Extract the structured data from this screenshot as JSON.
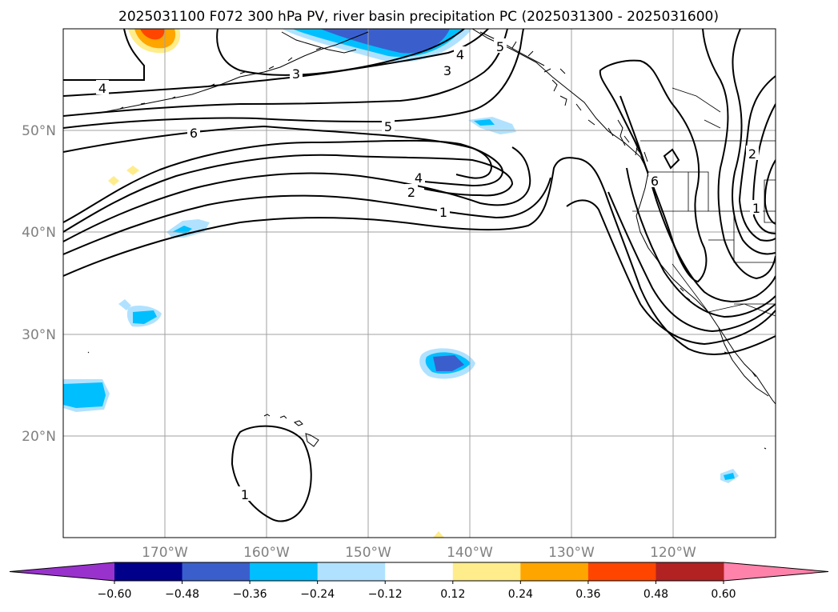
{
  "title": "2025031100 F072 300 hPa PV, river basin precipitation PC (2025031300 - 2025031600)",
  "map": {
    "lon_ticks": [
      "170°W",
      "160°W",
      "150°W",
      "140°W",
      "130°W",
      "120°W"
    ],
    "lat_ticks": [
      "50°N",
      "40°N",
      "30°N",
      "20°N"
    ],
    "extent": {
      "lon_min": -180,
      "lon_max": -110,
      "lat_min": 10,
      "lat_max": 60
    }
  },
  "colorbar": {
    "ticks": [
      "−0.60",
      "−0.48",
      "−0.36",
      "−0.24",
      "−0.12",
      "0.12",
      "0.24",
      "0.36",
      "0.48",
      "0.60"
    ],
    "colors": [
      "#9932cc",
      "#00008b",
      "#3a5fcd",
      "#00bfff",
      "#b0e2ff",
      "#ffffff",
      "#ffec8b",
      "#ffa500",
      "#ff4500",
      "#b22222",
      "#ff82ab"
    ]
  },
  "contour_labels": [
    {
      "text": "4"
    },
    {
      "text": "6"
    },
    {
      "text": "3"
    },
    {
      "text": "5"
    },
    {
      "text": "4"
    },
    {
      "text": "5"
    },
    {
      "text": "3"
    },
    {
      "text": "4"
    },
    {
      "text": "2"
    },
    {
      "text": "1"
    },
    {
      "text": "6"
    },
    {
      "text": "2"
    },
    {
      "text": "1"
    },
    {
      "text": "1"
    }
  ]
}
